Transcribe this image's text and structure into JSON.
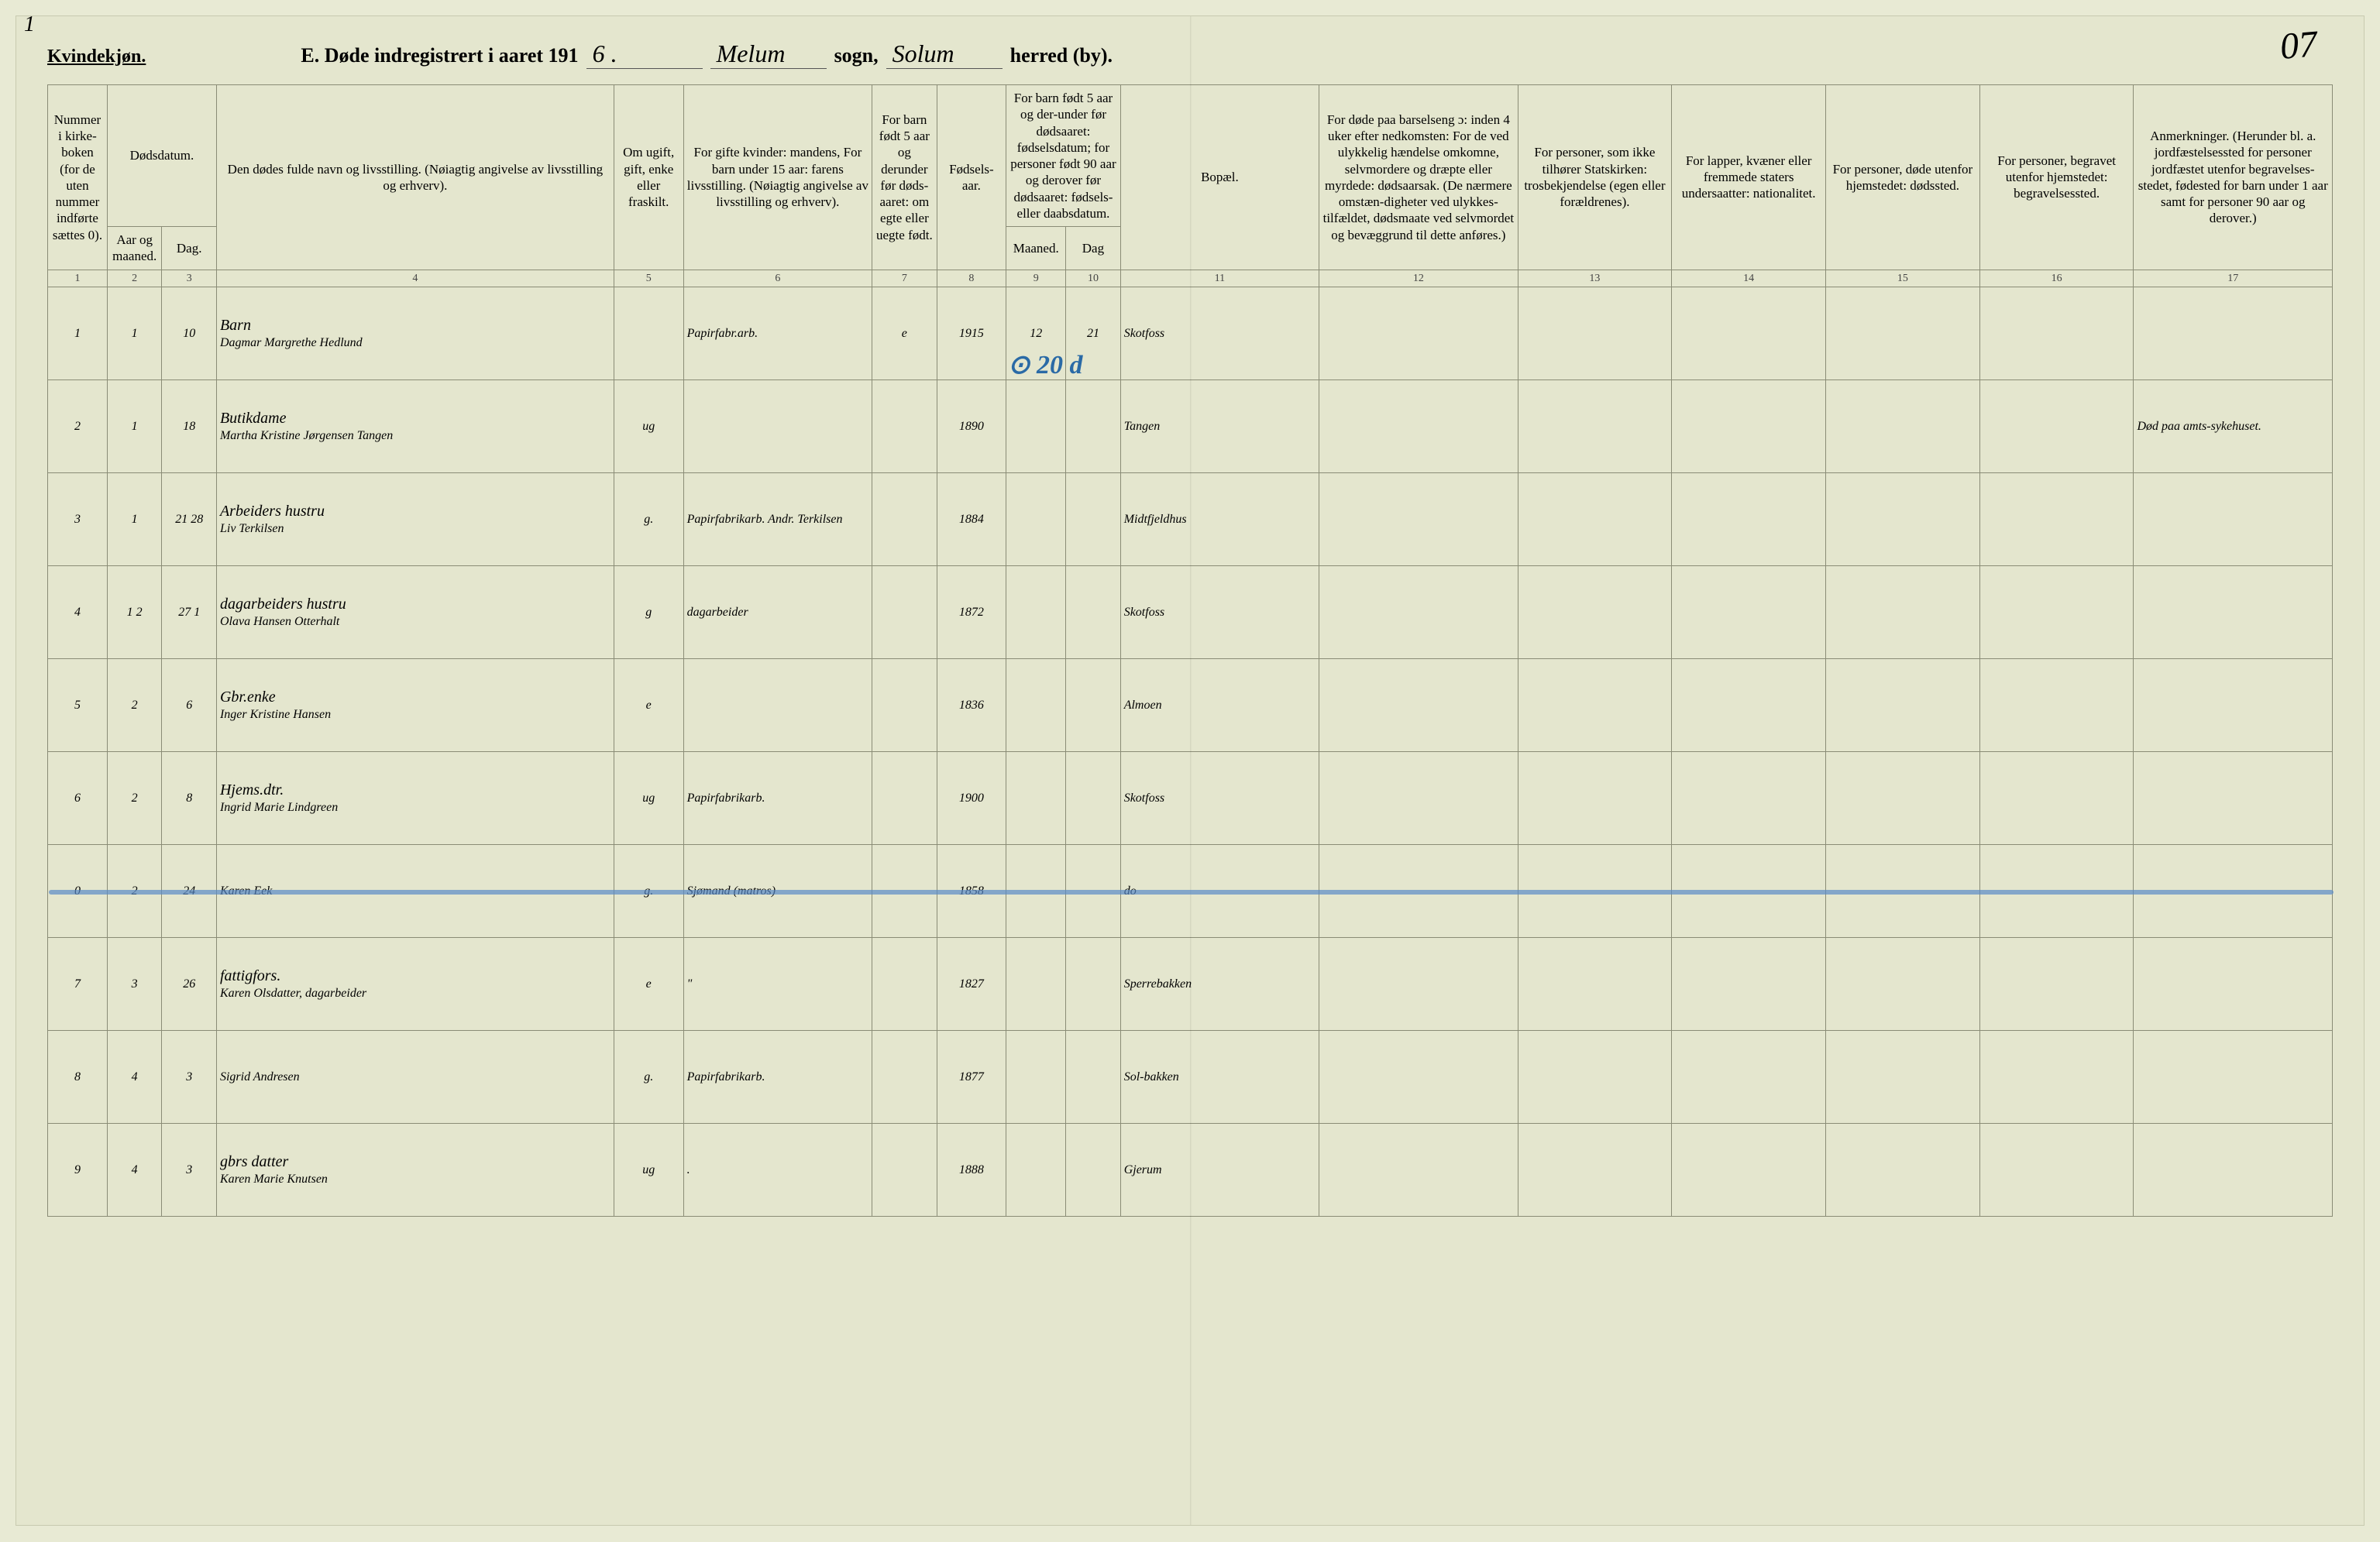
{
  "meta": {
    "gender_label": "Kvindekjøn.",
    "page_num_left": "1",
    "page_num_right": "07",
    "title_prefix": "E.  Døde indregistrert i aaret 191",
    "year_suffix": "6 .",
    "sogn_hw": "Melum",
    "sogn_label": "sogn,",
    "herred_hw": "Solum",
    "herred_label": "herred (by)."
  },
  "headers": {
    "c1": "Nummer i kirke-boken (for de uten nummer indførte sættes 0).",
    "c2_top": "Dødsdatum.",
    "c2a": "Aar og maaned.",
    "c2b": "Dag.",
    "c4": "Den dødes fulde navn og livsstilling. (Nøiagtig angivelse av livsstilling og erhverv).",
    "c5": "Om ugift, gift, enke eller fraskilt.",
    "c6": "For gifte kvinder: mandens, For barn under 15 aar: farens livsstilling. (Nøiagtig angivelse av livsstilling og erhverv).",
    "c7": "For barn født 5 aar og derunder før døds-aaret: om egte eller uegte født.",
    "c8": "Fødsels-aar.",
    "c9_top": "For barn født 5 aar og der-under før dødsaaret: fødselsdatum; for personer født 90 aar og derover før dødsaaret: fødsels- eller daabsdatum.",
    "c9a": "Maaned.",
    "c9b": "Dag",
    "c11": "Bopæl.",
    "c12": "For døde paa barselseng ɔ: inden 4 uker efter nedkomsten: For de ved ulykkelig hændelse omkomne, selvmordere og dræpte eller myrdede: dødsaarsak. (De nærmere omstæn-digheter ved ulykkes-tilfældet, dødsmaate ved selvmordet og bevæggrund til dette anføres.)",
    "c13": "For personer, som ikke tilhører Statskirken: trosbekjendelse (egen eller forældrenes).",
    "c14": "For lapper, kvæner eller fremmede staters undersaatter: nationalitet.",
    "c15": "For personer, døde utenfor hjemstedet: dødssted.",
    "c16": "For personer, begravet utenfor hjemstedet: begravelsessted.",
    "c17": "Anmerkninger. (Herunder bl. a. jordfæstelsessted for personer jordfæstet utenfor begravelses-stedet, fødested for barn under 1 aar samt for personer 90 aar og derover.)"
  },
  "colnums": [
    "1",
    "2",
    "3",
    "4",
    "5",
    "6",
    "7",
    "8",
    "9",
    "10",
    "11",
    "12",
    "13",
    "14",
    "15",
    "16",
    "17"
  ],
  "annotation_top": "⊙ 20 d",
  "rows": [
    {
      "n": "1",
      "mo": "1",
      "d": "10",
      "name": "Dagmar Margrethe Hedlund",
      "sub": "Barn",
      "ms": "",
      "occ": "Papirfabr.arb.",
      "leg": "e",
      "yr": "1915",
      "bm": "12",
      "bd": "21",
      "res": "Skotfoss",
      "rem": ""
    },
    {
      "n": "2",
      "mo": "1",
      "d": "18",
      "name": "Martha Kristine Jørgensen Tangen",
      "sub": "Butikdame",
      "ms": "ug",
      "occ": "",
      "leg": "",
      "yr": "1890",
      "bm": "",
      "bd": "",
      "res": "Tangen",
      "rem": "Død paa amts-sykehuset."
    },
    {
      "n": "3",
      "mo": "1",
      "d": "21 28",
      "name": "Liv Terkilsen",
      "sub": "Arbeiders hustru",
      "ms": "g.",
      "occ": "Papirfabrikarb. Andr. Terkilsen",
      "leg": "",
      "yr": "1884",
      "bm": "",
      "bd": "",
      "res": "Midtfjeldhus",
      "rem": ""
    },
    {
      "n": "4",
      "mo": "1 2",
      "d": "27 1",
      "name": "Olava Hansen Otterhalt",
      "sub": "dagarbeiders hustru",
      "ms": "g",
      "occ": "dagarbeider",
      "leg": "",
      "yr": "1872",
      "bm": "",
      "bd": "",
      "res": "Skotfoss",
      "rem": ""
    },
    {
      "n": "5",
      "mo": "2",
      "d": "6",
      "name": "Inger Kristine Hansen",
      "sub": "Gbr.enke",
      "ms": "e",
      "occ": "",
      "leg": "",
      "yr": "1836",
      "bm": "",
      "bd": "",
      "res": "Almoen",
      "rem": ""
    },
    {
      "n": "6",
      "mo": "2",
      "d": "8",
      "name": "Ingrid Marie Lindgreen",
      "sub": "Hjems.dtr.",
      "ms": "ug",
      "occ": "Papirfabrikarb.",
      "leg": "",
      "yr": "1900",
      "bm": "",
      "bd": "",
      "res": "Skotfoss",
      "rem": ""
    },
    {
      "n": "0",
      "mo": "2",
      "d": "24",
      "name": "Karen Eek",
      "sub": "",
      "ms": "g.",
      "occ": "Sjømand (matros)",
      "leg": "",
      "yr": "1858",
      "bm": "",
      "bd": "",
      "res": "do",
      "rem": "",
      "struck": true
    },
    {
      "n": "7",
      "mo": "3",
      "d": "26",
      "name": "Karen Olsdatter, dagarbeider",
      "sub": "fattigfors.",
      "ms": "e",
      "occ": "\"",
      "leg": "",
      "yr": "1827",
      "bm": "",
      "bd": "",
      "res": "Sperrebakken",
      "rem": ""
    },
    {
      "n": "8",
      "mo": "4",
      "d": "3",
      "name": "Sigrid Andresen",
      "sub": "",
      "ms": "g.",
      "occ": "Papirfabrikarb.",
      "leg": "",
      "yr": "1877",
      "bm": "",
      "bd": "",
      "res": "Sol-bakken",
      "rem": ""
    },
    {
      "n": "9",
      "mo": "4",
      "d": "3",
      "name": "Karen Marie Knutsen",
      "sub": "gbrs datter",
      "ms": "ug",
      "occ": ".",
      "leg": "",
      "yr": "1888",
      "bm": "",
      "bd": "",
      "res": "Gjerum",
      "rem": ""
    }
  ],
  "style": {
    "bg": "#e4e6ce",
    "border": "#8a8c76",
    "ink": "#2b2b2b",
    "blue": "#2a6aa6",
    "handwriting_size": 28,
    "header_size": 17
  }
}
